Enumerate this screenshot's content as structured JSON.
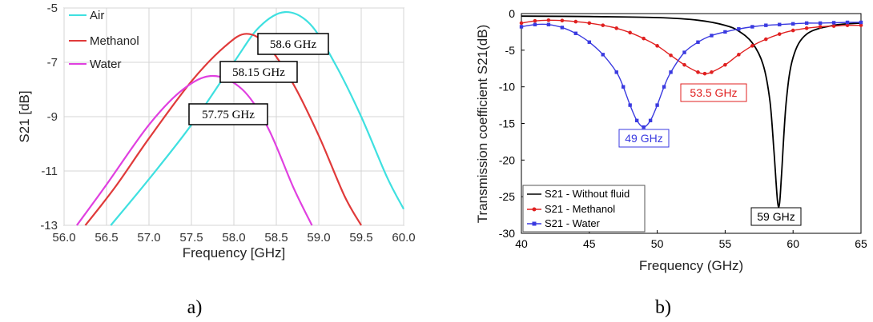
{
  "chart_data": [
    {
      "panel_label": "a)",
      "type": "line",
      "xlabel": "Frequency [GHz]",
      "ylabel": "S21 [dB]",
      "xlim": [
        56.0,
        60.0
      ],
      "ylim": [
        -13,
        -5
      ],
      "xticks": [
        "56.0",
        "56.5",
        "57.0",
        "57.5",
        "58.0",
        "58.5",
        "59.0",
        "59.5",
        "60.0"
      ],
      "yticks": [
        "-5",
        "-7",
        "-9",
        "-11",
        "-13"
      ],
      "grid": true,
      "legend": "top-left",
      "series": [
        {
          "name": "Air",
          "color": "#3fe0e0",
          "peak": [
            58.6,
            -5.15
          ],
          "x": [
            56.55,
            57.0,
            57.5,
            58.0,
            58.3,
            58.6,
            58.9,
            59.2,
            59.5,
            59.8,
            60.0
          ],
          "y": [
            -13.0,
            -11.3,
            -9.3,
            -7.0,
            -5.7,
            -5.15,
            -5.6,
            -7.1,
            -9.0,
            -11.2,
            -12.4
          ]
        },
        {
          "name": "Methanol",
          "color": "#e03a3a",
          "peak": [
            58.15,
            -5.95
          ],
          "x": [
            56.25,
            56.6,
            57.0,
            57.5,
            57.9,
            58.15,
            58.4,
            58.7,
            59.0,
            59.3,
            59.5
          ],
          "y": [
            -13.0,
            -11.6,
            -9.8,
            -7.7,
            -6.4,
            -5.95,
            -6.4,
            -7.8,
            -9.7,
            -11.9,
            -13.0
          ]
        },
        {
          "name": "Water",
          "color": "#e040e0",
          "peak": [
            57.75,
            -7.5
          ],
          "x": [
            56.15,
            56.5,
            57.0,
            57.4,
            57.75,
            58.1,
            58.4,
            58.7,
            58.92
          ],
          "y": [
            -13.0,
            -11.5,
            -9.3,
            -8.0,
            -7.5,
            -8.0,
            -9.4,
            -11.6,
            -13.0
          ]
        }
      ],
      "annotations": [
        "58.6 GHz",
        "58.15 GHz",
        "57.75 GHz"
      ]
    },
    {
      "panel_label": "b)",
      "type": "line",
      "xlabel": "Frequency (GHz)",
      "ylabel": "Transmission coefficient S21(dB)",
      "xlim": [
        40,
        65
      ],
      "ylim": [
        -30,
        0
      ],
      "xticks": [
        "40",
        "45",
        "50",
        "55",
        "60",
        "65"
      ],
      "yticks": [
        "0",
        "-5",
        "-10",
        "-15",
        "-20",
        "-25",
        "-30"
      ],
      "grid": false,
      "legend": "bottom-left",
      "series": [
        {
          "name": "S21 - Without fluid",
          "color": "#000000",
          "marker": "none",
          "x": [
            40,
            45,
            50,
            53,
            55,
            56,
            57,
            57.8,
            58.3,
            58.6,
            58.85,
            59.0,
            59.15,
            59.5,
            60,
            61,
            63,
            65
          ],
          "y": [
            -0.35,
            -0.4,
            -0.55,
            -0.9,
            -1.6,
            -2.4,
            -4.0,
            -7.0,
            -12.0,
            -19.0,
            -25.5,
            -26.0,
            -22.0,
            -12.0,
            -6.0,
            -2.8,
            -1.6,
            -1.3
          ]
        },
        {
          "name": "S21 - Methanol",
          "color": "#e02020",
          "marker": "circle",
          "x": [
            40,
            41,
            42,
            43,
            44,
            45,
            46,
            47,
            48,
            49,
            50,
            51,
            52,
            53,
            53.5,
            54,
            55,
            56,
            57,
            58,
            59,
            60,
            61,
            62,
            63,
            64,
            65
          ],
          "y": [
            -1.3,
            -1.0,
            -0.9,
            -0.95,
            -1.1,
            -1.3,
            -1.6,
            -2.0,
            -2.6,
            -3.4,
            -4.4,
            -5.7,
            -7.0,
            -8.0,
            -8.2,
            -8.0,
            -7.0,
            -5.6,
            -4.4,
            -3.5,
            -2.8,
            -2.3,
            -2.0,
            -1.8,
            -1.7,
            -1.6,
            -1.6
          ]
        },
        {
          "name": "S21 - Water",
          "color": "#3a3ae0",
          "marker": "square",
          "x": [
            40,
            41,
            42,
            43,
            44,
            45,
            46,
            47,
            47.5,
            48,
            48.5,
            49,
            49.5,
            50,
            50.5,
            51,
            52,
            53,
            54,
            55,
            56,
            57,
            58,
            59,
            60,
            61,
            62,
            63,
            64,
            65
          ],
          "y": [
            -1.8,
            -1.5,
            -1.5,
            -1.9,
            -2.7,
            -3.9,
            -5.6,
            -8.0,
            -10.0,
            -12.5,
            -14.6,
            -15.5,
            -14.6,
            -12.5,
            -10.0,
            -8.0,
            -5.3,
            -3.9,
            -3.0,
            -2.5,
            -2.1,
            -1.8,
            -1.6,
            -1.5,
            -1.4,
            -1.3,
            -1.3,
            -1.25,
            -1.2,
            -1.2
          ]
        }
      ],
      "annotations": [
        "53.5 GHz",
        "49 GHz",
        "59 GHz"
      ]
    }
  ]
}
